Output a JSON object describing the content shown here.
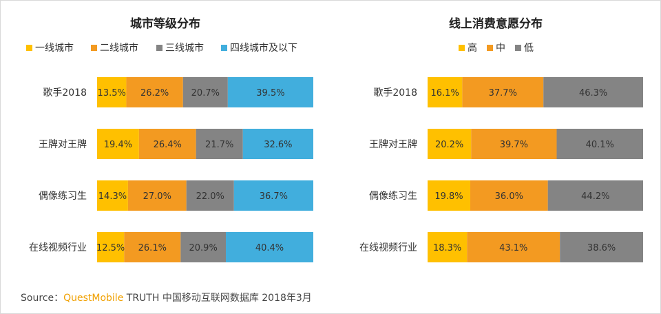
{
  "source": {
    "prefix": "Source：",
    "brand": "QuestMobile",
    "suffix": "TRUTH 中国移动互联网数据库 2018年3月"
  },
  "chart_data": [
    {
      "type": "bar",
      "orientation": "horizontal",
      "stacked": true,
      "percent": true,
      "title": "城市等级分布",
      "legend_position": "top",
      "categories": [
        "歌手2018",
        "王牌对王牌",
        "偶像练习生",
        "在线视频行业"
      ],
      "xlim": [
        0,
        100
      ],
      "grid": false,
      "series": [
        {
          "name": "一线城市",
          "color": "#FFC000",
          "values": [
            13.5,
            19.4,
            14.3,
            12.5
          ]
        },
        {
          "name": "二线城市",
          "color": "#F39A21",
          "values": [
            26.2,
            26.4,
            27.0,
            26.1
          ]
        },
        {
          "name": "三线城市",
          "color": "#848484",
          "values": [
            20.7,
            21.7,
            22.0,
            20.9
          ]
        },
        {
          "name": "四线城市及以下",
          "color": "#41AEDD",
          "values": [
            39.5,
            32.6,
            36.7,
            40.4
          ]
        }
      ],
      "labels": [
        [
          "13.5%",
          "26.2%",
          "20.7%",
          "39.5%"
        ],
        [
          "19.4%",
          "26.4%",
          "21.7%",
          "32.6%"
        ],
        [
          "14.3%",
          "27.0%",
          "22.0%",
          "36.7%"
        ],
        [
          "12.5%",
          "26.1%",
          "20.9%",
          "40.4%"
        ]
      ]
    },
    {
      "type": "bar",
      "orientation": "horizontal",
      "stacked": true,
      "percent": true,
      "title": "线上消费意愿分布",
      "legend_position": "top",
      "categories": [
        "歌手2018",
        "王牌对王牌",
        "偶像练习生",
        "在线视频行业"
      ],
      "xlim": [
        0,
        100
      ],
      "grid": false,
      "series": [
        {
          "name": "高",
          "color": "#FFC000",
          "values": [
            16.1,
            20.2,
            19.8,
            18.3
          ]
        },
        {
          "name": "中",
          "color": "#F39A21",
          "values": [
            37.7,
            39.7,
            36.0,
            43.1
          ]
        },
        {
          "name": "低",
          "color": "#848484",
          "values": [
            46.3,
            40.1,
            44.2,
            38.6
          ]
        }
      ],
      "labels": [
        [
          "16.1%",
          "37.7%",
          "46.3%"
        ],
        [
          "20.2%",
          "39.7%",
          "40.1%"
        ],
        [
          "19.8%",
          "36.0%",
          "44.2%"
        ],
        [
          "18.3%",
          "43.1%",
          "38.6%"
        ]
      ]
    }
  ]
}
